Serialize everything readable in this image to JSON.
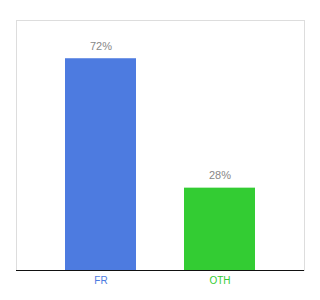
{
  "chart_data": {
    "type": "bar",
    "categories": [
      "FR",
      "OTH"
    ],
    "values": [
      72,
      28
    ],
    "value_labels": [
      "72%",
      "28%"
    ],
    "colors": [
      "#4d7be0",
      "#33cc33"
    ],
    "ylim": [
      0,
      85
    ],
    "data_labels": true,
    "tick_labels": "x"
  }
}
